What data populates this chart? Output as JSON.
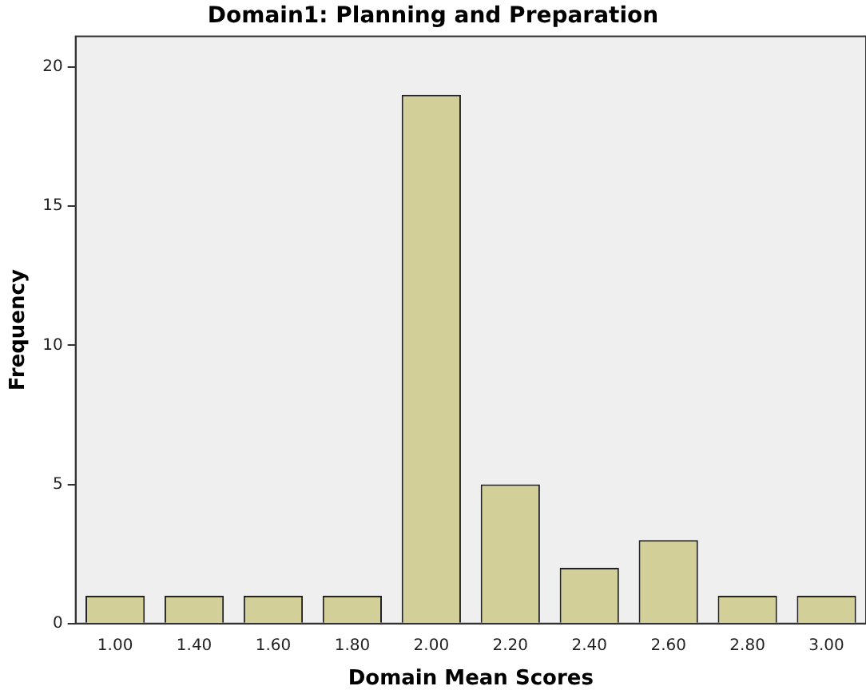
{
  "chart_data": {
    "type": "bar",
    "title": "Domain1: Planning and Preparation",
    "xlabel": "Domain Mean Scores",
    "ylabel": "Frequency",
    "categories": [
      "1.00",
      "1.40",
      "1.60",
      "1.80",
      "2.00",
      "2.20",
      "2.40",
      "2.60",
      "2.80",
      "3.00"
    ],
    "values": [
      1,
      1,
      1,
      1,
      19,
      5,
      2,
      3,
      1,
      1
    ],
    "color": "#d3cf98",
    "ylim": [
      0,
      21.1
    ],
    "yticks": [
      0,
      5,
      10,
      15,
      20
    ],
    "grid": false,
    "legend": false
  }
}
